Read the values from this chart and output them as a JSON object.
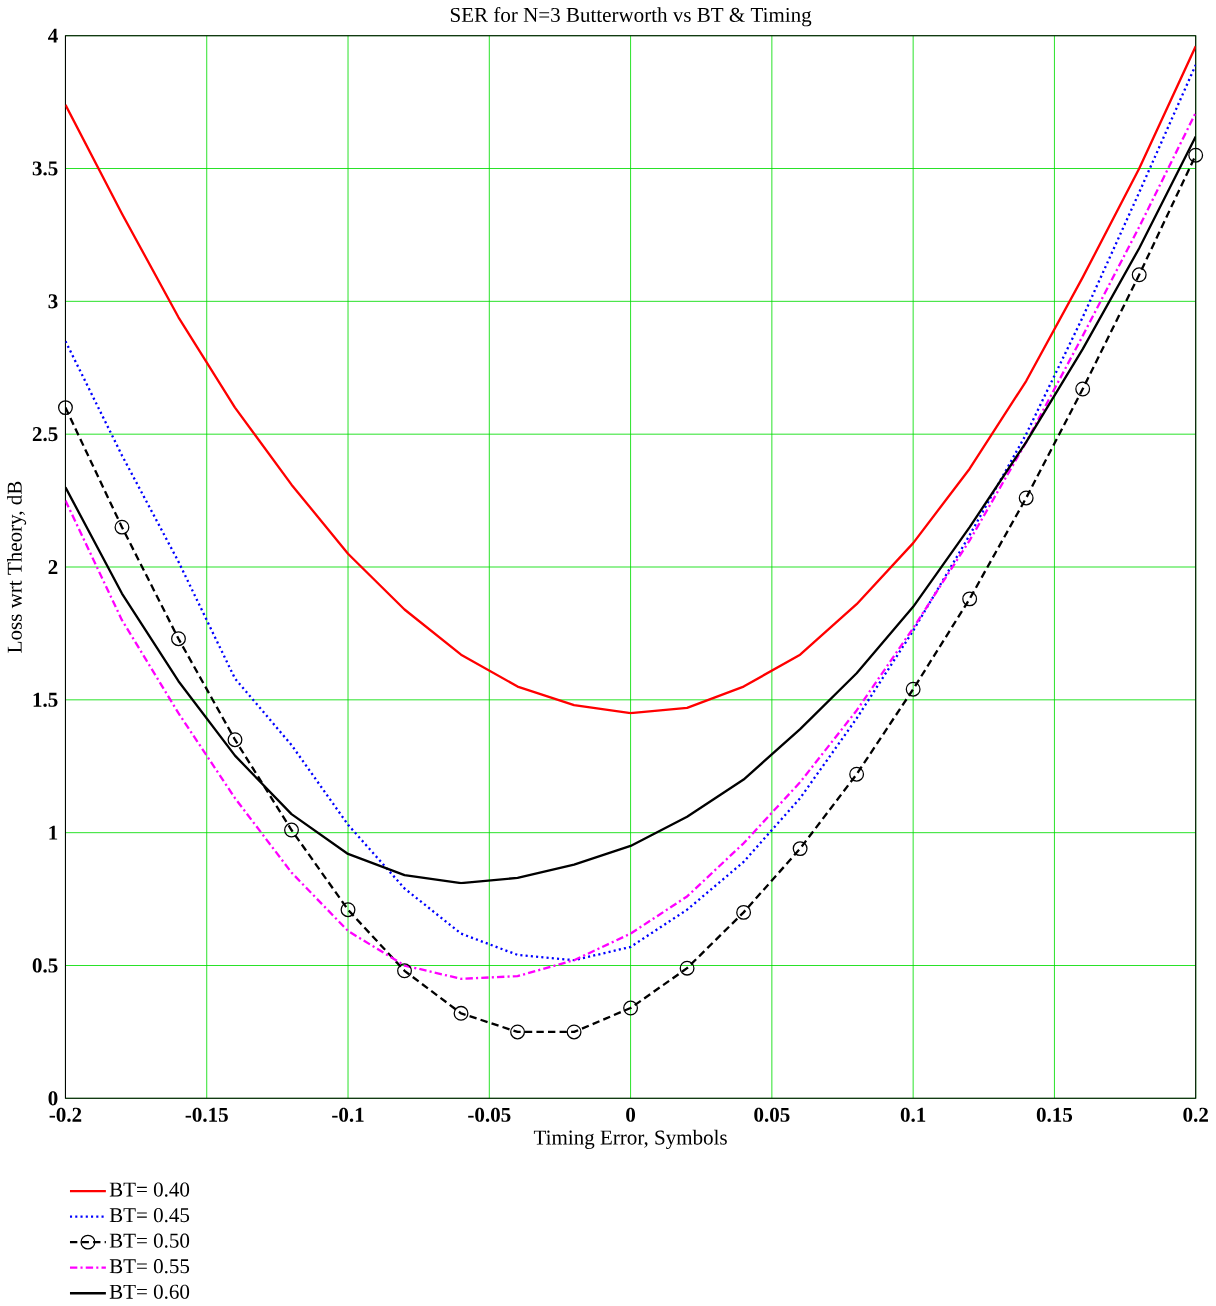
{
  "chart_data": {
    "type": "line",
    "title": "SER for N=3 Butterworth vs BT & Timing",
    "xlabel": "Timing Error, Symbols",
    "ylabel": "Loss wrt Theory, dB",
    "x": [
      -0.2,
      -0.18,
      -0.16,
      -0.14,
      -0.12,
      -0.1,
      -0.08,
      -0.06,
      -0.04,
      -0.02,
      0,
      0.02,
      0.04,
      0.06,
      0.08,
      0.1,
      0.12,
      0.14,
      0.16,
      0.18,
      0.2
    ],
    "series": [
      {
        "name": "BT= 0.40",
        "color": "#ff0000",
        "line_style": "solid",
        "marker": "none",
        "values": [
          3.74,
          3.33,
          2.94,
          2.6,
          2.31,
          2.05,
          1.84,
          1.67,
          1.55,
          1.48,
          1.45,
          1.47,
          1.55,
          1.67,
          1.86,
          2.09,
          2.37,
          2.7,
          3.09,
          3.5,
          3.96
        ]
      },
      {
        "name": "BT= 0.45",
        "color": "#0000ff",
        "line_style": "dotted",
        "marker": "none",
        "values": [
          2.85,
          2.42,
          2.02,
          1.58,
          1.33,
          1.03,
          0.79,
          0.62,
          0.54,
          0.52,
          0.57,
          0.71,
          0.89,
          1.13,
          1.43,
          1.76,
          2.12,
          2.5,
          2.94,
          3.41,
          3.89
        ]
      },
      {
        "name": "BT= 0.50",
        "color": "#000000",
        "line_style": "dashed",
        "marker": "circle",
        "values": [
          2.6,
          2.15,
          1.73,
          1.35,
          1.01,
          0.71,
          0.48,
          0.32,
          0.25,
          0.25,
          0.34,
          0.49,
          0.7,
          0.94,
          1.22,
          1.54,
          1.88,
          2.26,
          2.67,
          3.1,
          3.55
        ]
      },
      {
        "name": "BT= 0.55",
        "color": "#ff00ff",
        "line_style": "dashdot",
        "marker": "none",
        "values": [
          2.25,
          1.8,
          1.45,
          1.13,
          0.85,
          0.63,
          0.5,
          0.45,
          0.46,
          0.52,
          0.62,
          0.76,
          0.96,
          1.19,
          1.46,
          1.77,
          2.1,
          2.47,
          2.87,
          3.28,
          3.71
        ]
      },
      {
        "name": "BT= 0.60",
        "color": "#000000",
        "line_style": "solid",
        "marker": "none",
        "values": [
          2.3,
          1.9,
          1.57,
          1.29,
          1.07,
          0.92,
          0.84,
          0.81,
          0.83,
          0.88,
          0.95,
          1.06,
          1.2,
          1.39,
          1.6,
          1.85,
          2.15,
          2.47,
          2.82,
          3.2,
          3.62
        ]
      }
    ],
    "xlim": [
      -0.2,
      0.2
    ],
    "ylim": [
      0,
      4
    ],
    "xticks": [
      -0.2,
      -0.15,
      -0.1,
      -0.05,
      0,
      0.05,
      0.1,
      0.15,
      0.2
    ],
    "yticks": [
      0,
      0.5,
      1,
      1.5,
      2,
      2.5,
      3,
      3.5,
      4
    ],
    "grid": true,
    "legend": "bottom left"
  }
}
